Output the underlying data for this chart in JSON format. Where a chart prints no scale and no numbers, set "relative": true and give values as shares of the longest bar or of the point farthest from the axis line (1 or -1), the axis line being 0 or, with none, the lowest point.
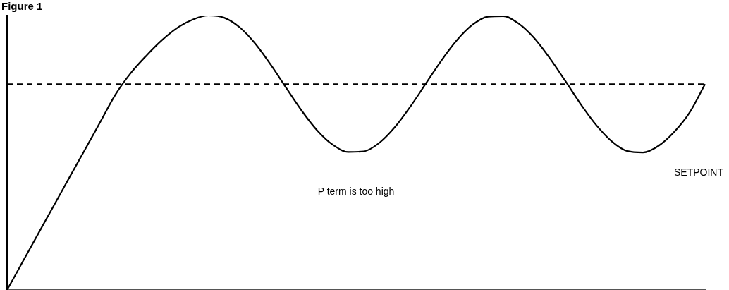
{
  "chart_data": {
    "type": "line",
    "title": "Figure 1",
    "relative": true,
    "marker": "none",
    "line_style": "solid",
    "grid": false,
    "legend": false,
    "tick_labels": false,
    "categories": [
      null,
      null,
      null,
      null,
      null,
      null,
      null,
      null,
      null,
      null,
      null,
      null,
      null,
      null,
      null,
      null,
      null,
      null,
      null,
      null,
      null,
      null,
      null,
      null,
      null,
      null,
      null,
      null,
      null,
      null,
      null,
      null,
      null,
      null,
      null,
      null,
      null,
      null,
      null,
      null,
      null,
      null,
      null,
      null,
      null,
      null
    ],
    "series": [
      {
        "color": "#000000",
        "values": [
          0,
          0.102,
          0.204,
          0.306,
          0.408,
          0.509,
          0.611,
          0.713,
          0.792,
          0.855,
          0.911,
          0.956,
          0.986,
          1,
          0.992,
          0.957,
          0.898,
          0.821,
          0.736,
          0.653,
          0.581,
          0.529,
          0.503,
          0.505,
          0.536,
          0.593,
          0.668,
          0.752,
          0.836,
          0.91,
          0.966,
          0.996,
          0.998,
          0.97,
          0.917,
          0.844,
          0.761,
          0.676,
          0.6,
          0.541,
          0.506,
          0.501,
          0.525,
          0.575,
          0.646,
          0.75
        ]
      }
    ],
    "ref_lines": [
      {
        "axis": "y",
        "value": 0.75,
        "label": "SETPOINT",
        "color": "#000000",
        "line_style": "dashed"
      }
    ],
    "annotations": [
      "P term is too high"
    ]
  }
}
